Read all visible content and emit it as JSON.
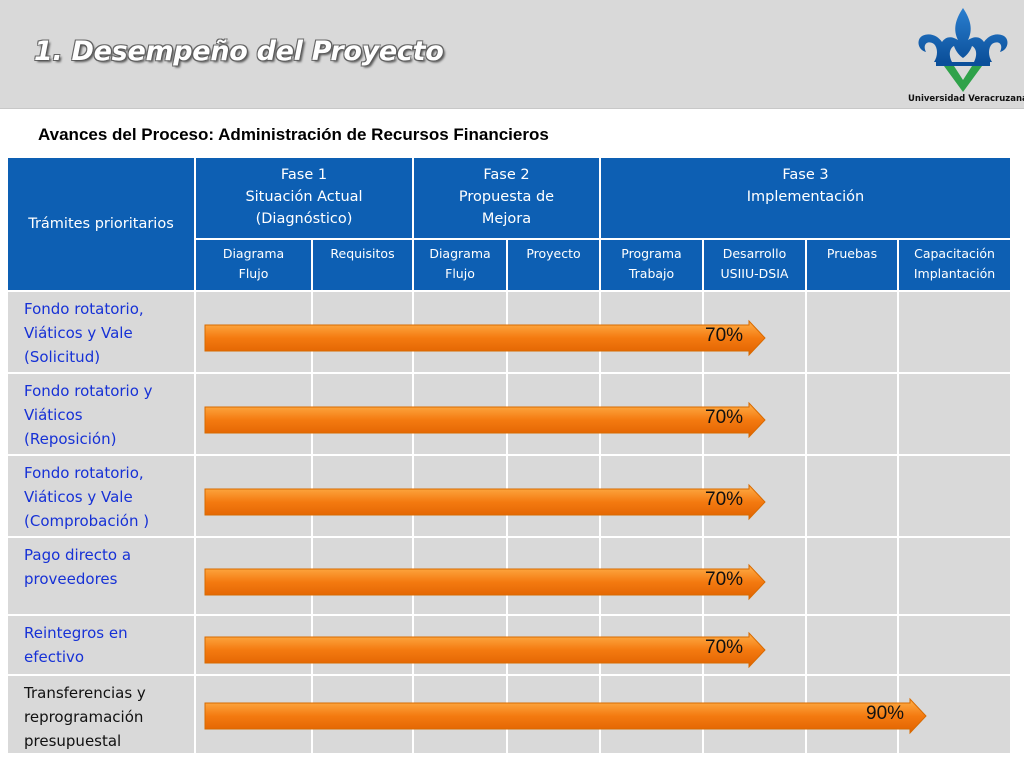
{
  "header": {
    "title": "1. Desempeño del Proyecto",
    "logo_text": "Universidad Veracruzana"
  },
  "subtitle": "Avances del Proceso:  Administración de Recursos Financieros",
  "table": {
    "corner_header": "Trámites prioritarios",
    "phases": [
      {
        "line1": "Fase 1",
        "line2": "Situación Actual",
        "line3": "(Diagnóstico)"
      },
      {
        "line1": "Fase 2",
        "line2": "Propuesta de",
        "line3": "Mejora"
      },
      {
        "line1": "Fase 3",
        "line2": "Implementación",
        "line3": ""
      }
    ],
    "sub_headers": [
      {
        "line1": "Diagrama",
        "line2": "Flujo"
      },
      {
        "line1": "Requisitos",
        "line2": ""
      },
      {
        "line1": "Diagrama",
        "line2": "Flujo"
      },
      {
        "line1": "Proyecto",
        "line2": ""
      },
      {
        "line1": "Programa",
        "line2": "Trabajo"
      },
      {
        "line1": "Desarrollo",
        "line2": "USIIU-DSIA"
      },
      {
        "line1": "Pruebas",
        "line2": ""
      },
      {
        "line1": "Capacitación",
        "line2": "Implantación"
      }
    ],
    "rows": [
      {
        "line1": "Fondo rotatorio,",
        "line2": "Viáticos y Vale",
        "line3": "(Solicitud)",
        "progress_label": "70%",
        "progress": 0.7
      },
      {
        "line1": "Fondo rotatorio y",
        "line2": "Viáticos",
        "line3": "(Reposición)",
        "progress_label": "70%",
        "progress": 0.7
      },
      {
        "line1": "Fondo rotatorio,",
        "line2": "Viáticos y Vale",
        "line3": "(Comprobación )",
        "progress_label": "70%",
        "progress": 0.7
      },
      {
        "line1": "Pago directo a",
        "line2": "proveedores",
        "line3": "",
        "progress_label": "70%",
        "progress": 0.7
      },
      {
        "line1": "Reintegros en",
        "line2": "efectivo",
        "line3": "",
        "progress_label": "70%",
        "progress": 0.7
      },
      {
        "line1": "Transferencias y",
        "line2": "reprogramación",
        "line3": "presupuestal",
        "progress_label": "90%",
        "progress": 0.9
      }
    ]
  },
  "colors": {
    "header_blue": "#0d5fb3",
    "bar_orange": "#f47a10",
    "row_label_blue": "#1631d6"
  }
}
